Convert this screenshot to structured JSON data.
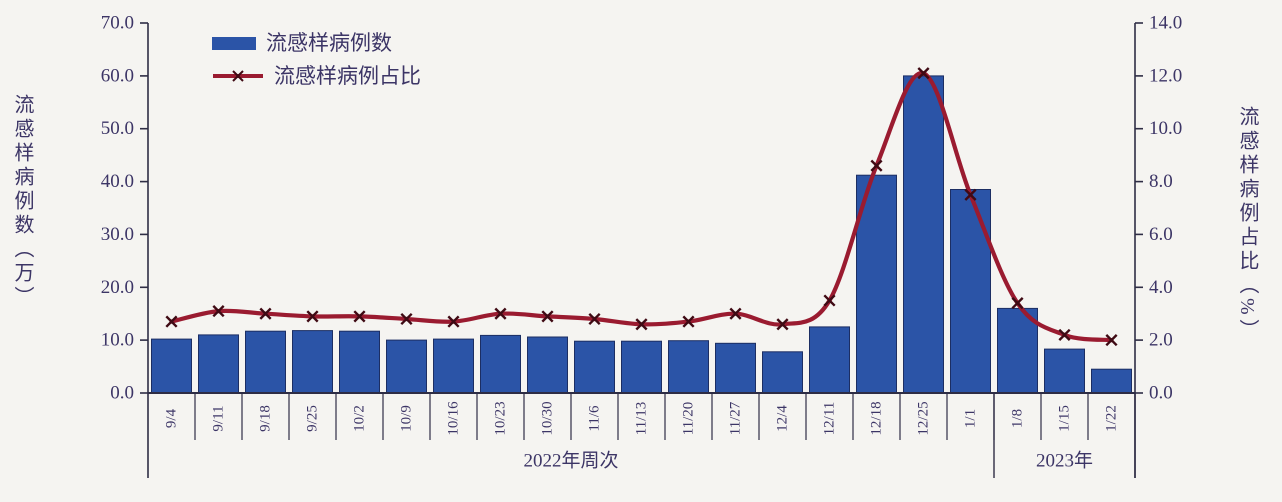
{
  "chart_data": {
    "type": "bar",
    "combo": "bar+line",
    "title": "",
    "categories": [
      "9/4",
      "9/11",
      "9/18",
      "9/25",
      "10/2",
      "10/9",
      "10/16",
      "10/23",
      "10/30",
      "11/6",
      "11/13",
      "11/20",
      "11/27",
      "12/4",
      "12/11",
      "12/18",
      "12/25",
      "1/1",
      "1/8",
      "1/15",
      "1/22"
    ],
    "series": [
      {
        "name": "流感样病例数",
        "type": "bar",
        "axis": "left",
        "color": "#2b54a7",
        "border_color": "#1c2e63",
        "values": [
          10.2,
          11.0,
          11.7,
          11.8,
          11.7,
          10.0,
          10.2,
          10.9,
          10.6,
          9.8,
          9.8,
          9.9,
          9.4,
          7.8,
          12.5,
          41.2,
          60.0,
          38.5,
          16.0,
          8.3,
          4.5
        ]
      },
      {
        "name": "流感样病例占比",
        "type": "line",
        "axis": "right",
        "color": "#9a1b30",
        "marker": "x",
        "marker_color": "#3f0a14",
        "smooth": true,
        "values": [
          2.7,
          3.1,
          3.0,
          2.9,
          2.9,
          2.8,
          2.7,
          3.0,
          2.9,
          2.8,
          2.6,
          2.7,
          3.0,
          2.6,
          3.5,
          8.6,
          12.1,
          7.5,
          3.4,
          2.2,
          2.0
        ]
      }
    ],
    "left_axis": {
      "title": "流感样病例数（万）",
      "min": 0,
      "max": 70,
      "step": 10,
      "ticks": [
        "0.0",
        "10.0",
        "20.0",
        "30.0",
        "40.0",
        "50.0",
        "60.0",
        "70.0"
      ]
    },
    "right_axis": {
      "title": "流感样病例占比（%）",
      "min": 0,
      "max": 14,
      "step": 2,
      "ticks": [
        "0.0",
        "2.0",
        "4.0",
        "6.0",
        "8.0",
        "10.0",
        "12.0",
        "14.0"
      ]
    },
    "x_axis": {
      "tick_label_rotation": -90,
      "group_labels": [
        {
          "label": "2022年周次",
          "from": 0,
          "to": 17
        },
        {
          "label": "2023年",
          "from": 18,
          "to": 20
        }
      ]
    },
    "legend_position": "top-left-inside",
    "grid": false
  },
  "colors": {
    "background": "#f5f4f1",
    "text": "#3c3566",
    "axis": "#2e2d45"
  }
}
